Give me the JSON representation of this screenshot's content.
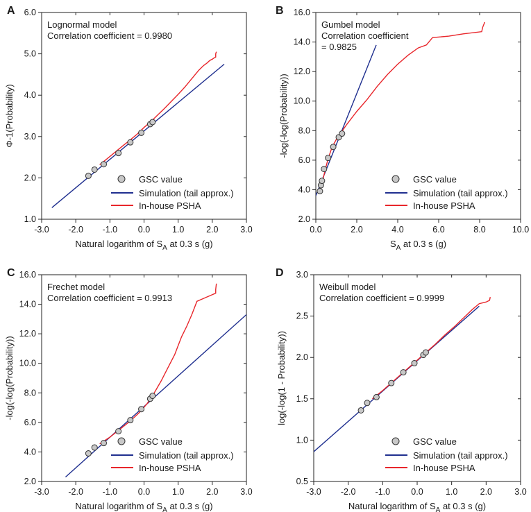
{
  "colors": {
    "simulation": "#1f2f8f",
    "inhouse": "#e8262b",
    "marker_fill": "#c8c8c8",
    "marker_stroke": "#333333",
    "axis": "#222222"
  },
  "chart_data": [
    {
      "panel": "A",
      "type": "line",
      "title": "Lognormal model",
      "correlation": "Correlation coefficient = 0.9980",
      "xlabel": "Natural logarithm of S",
      "xlabel_sub": "A",
      "xlabel_suffix": " at 0.3 s (g)",
      "ylabel": "Φ-1(Probability)",
      "xlim": [
        -3.0,
        3.0
      ],
      "ylim": [
        1.0,
        6.0
      ],
      "xticks": [
        -3.0,
        -2.0,
        -1.0,
        0.0,
        1.0,
        2.0,
        3.0
      ],
      "yticks": [
        1.0,
        2.0,
        3.0,
        4.0,
        5.0,
        6.0
      ],
      "xtick_labels": [
        "-3.0",
        "-2.0",
        "-1.0",
        "0.0",
        "1.0",
        "2.0",
        "3.0"
      ],
      "ytick_labels": [
        "1.0",
        "2.0",
        "3.0",
        "4.0",
        "5.0",
        "6.0"
      ],
      "legend": {
        "position": "lower-right",
        "gsc": "GSC value",
        "simulation": "Simulation (tail approx.)",
        "inhouse": "In-house PSHA"
      },
      "series": [
        {
          "name": "Simulation (tail approx.)",
          "kind": "line",
          "x": [
            -2.7,
            2.35
          ],
          "y": [
            1.28,
            4.75
          ]
        },
        {
          "name": "In-house PSHA",
          "kind": "line",
          "x": [
            -1.3,
            -1.1,
            -0.85,
            -0.6,
            -0.4,
            -0.2,
            0.0,
            0.2,
            0.4,
            0.6,
            0.8,
            1.0,
            1.2,
            1.35,
            1.5,
            1.6,
            1.7,
            1.75,
            1.85,
            1.9,
            1.95,
            2.0,
            2.05,
            2.1,
            2.1,
            2.12
          ],
          "y": [
            2.32,
            2.45,
            2.62,
            2.79,
            2.92,
            3.06,
            3.22,
            3.36,
            3.52,
            3.68,
            3.85,
            4.02,
            4.2,
            4.35,
            4.5,
            4.6,
            4.68,
            4.72,
            4.78,
            4.82,
            4.85,
            4.87,
            4.9,
            4.92,
            5.0,
            5.05
          ]
        },
        {
          "name": "GSC value",
          "kind": "scatter",
          "x": [
            -1.63,
            -1.45,
            -1.18,
            -0.75,
            -0.4,
            -0.08,
            0.18,
            0.25
          ],
          "y": [
            2.05,
            2.2,
            2.33,
            2.6,
            2.86,
            3.09,
            3.3,
            3.35
          ]
        }
      ]
    },
    {
      "panel": "B",
      "type": "line",
      "title": "Gumbel model",
      "correlation": "Correlation coefficient",
      "correlation2": "= 0.9825",
      "xlabel": "S",
      "xlabel_sub": "A",
      "xlabel_suffix": " at 0.3 s (g)",
      "ylabel": "-log(-log(Probability))",
      "xlim": [
        0.0,
        10.0
      ],
      "ylim": [
        2.0,
        16.0
      ],
      "xticks": [
        0.0,
        2.0,
        4.0,
        6.0,
        8.0,
        10.0
      ],
      "yticks": [
        2.0,
        4.0,
        6.0,
        8.0,
        10.0,
        12.0,
        14.0,
        16.0
      ],
      "xtick_labels": [
        "0.0",
        "2.0",
        "4.0",
        "6.0",
        "8.0",
        "10.0"
      ],
      "ytick_labels": [
        "2.0",
        "4.0",
        "6.0",
        "8.0",
        "10.0",
        "12.0",
        "14.0",
        "16.0"
      ],
      "legend": {
        "position": "lower-right",
        "gsc": "GSC value",
        "simulation": "Simulation (tail approx.)",
        "inhouse": "In-house PSHA"
      },
      "series": [
        {
          "name": "Simulation (tail approx.)",
          "kind": "line",
          "x": [
            0.0,
            2.95
          ],
          "y": [
            3.6,
            13.8
          ]
        },
        {
          "name": "In-house PSHA",
          "kind": "line",
          "x": [
            0.2,
            0.3,
            0.45,
            0.6,
            0.8,
            1.0,
            1.2,
            1.5,
            2.0,
            2.5,
            3.0,
            3.5,
            4.0,
            4.5,
            5.0,
            5.4,
            5.7,
            6.5,
            7.2,
            8.1,
            8.15,
            8.25
          ],
          "y": [
            3.9,
            4.4,
            5.3,
            6.1,
            6.9,
            7.4,
            7.8,
            8.4,
            9.3,
            10.1,
            11.0,
            11.8,
            12.5,
            13.1,
            13.6,
            13.8,
            14.3,
            14.4,
            14.55,
            14.7,
            15.0,
            15.35
          ]
        },
        {
          "name": "GSC value",
          "kind": "scatter",
          "x": [
            0.2,
            0.25,
            0.3,
            0.4,
            0.6,
            0.85,
            1.12,
            1.28
          ],
          "y": [
            3.9,
            4.3,
            4.6,
            5.4,
            6.15,
            6.9,
            7.55,
            7.8
          ]
        }
      ]
    },
    {
      "panel": "C",
      "type": "line",
      "title": "Frechet model",
      "correlation": "Correlation coefficient = 0.9913",
      "xlabel": "Natural logarithm of S",
      "xlabel_sub": "A",
      "xlabel_suffix": " at 0.3 s (g)",
      "ylabel": "-log(-log(Probability))",
      "xlim": [
        -3.0,
        3.0
      ],
      "ylim": [
        2.0,
        16.0
      ],
      "xticks": [
        -3.0,
        -2.0,
        -1.0,
        0.0,
        1.0,
        2.0,
        3.0
      ],
      "yticks": [
        2.0,
        4.0,
        6.0,
        8.0,
        10.0,
        12.0,
        14.0,
        16.0
      ],
      "xtick_labels": [
        "-3.0",
        "-2.0",
        "-1.0",
        "0.0",
        "1.0",
        "2.0",
        "3.0"
      ],
      "ytick_labels": [
        "2.0",
        "4.0",
        "6.0",
        "8.0",
        "10.0",
        "12.0",
        "14.0",
        "16.0"
      ],
      "legend": {
        "position": "lower-right",
        "gsc": "GSC value",
        "simulation": "Simulation (tail approx.)",
        "inhouse": "In-house PSHA"
      },
      "series": [
        {
          "name": "Simulation (tail approx.)",
          "kind": "line",
          "x": [
            -2.3,
            3.0
          ],
          "y": [
            2.3,
            13.3
          ]
        },
        {
          "name": "In-house PSHA",
          "kind": "line",
          "x": [
            -1.3,
            -1.0,
            -0.7,
            -0.4,
            -0.1,
            0.1,
            0.3,
            0.5,
            0.7,
            0.9,
            1.0,
            1.1,
            1.25,
            1.4,
            1.55,
            1.7,
            1.8,
            1.9,
            2.0,
            2.05,
            2.1,
            2.1,
            2.12
          ],
          "y": [
            4.55,
            5.0,
            5.55,
            6.1,
            6.75,
            7.3,
            8.0,
            8.8,
            9.7,
            10.6,
            11.2,
            11.8,
            12.5,
            13.3,
            14.2,
            14.35,
            14.45,
            14.55,
            14.65,
            14.7,
            14.75,
            15.0,
            15.4
          ]
        },
        {
          "name": "GSC value",
          "kind": "scatter",
          "x": [
            -1.63,
            -1.45,
            -1.18,
            -0.75,
            -0.4,
            -0.08,
            0.18,
            0.25
          ],
          "y": [
            3.9,
            4.3,
            4.6,
            5.4,
            6.15,
            6.9,
            7.6,
            7.8
          ]
        }
      ]
    },
    {
      "panel": "D",
      "type": "line",
      "title": "Weibull model",
      "correlation": "Correlation coefficient = 0.9999",
      "xlabel": "Natural logarithm of S",
      "xlabel_sub": "A",
      "xlabel_suffix": " at 0.3 s (g)",
      "ylabel": "log(-log(1 - Probability))",
      "xlim": [
        -3.0,
        3.0
      ],
      "ylim": [
        0.5,
        3.0
      ],
      "xticks": [
        -3.0,
        -2.0,
        -1.0,
        0.0,
        1.0,
        2.0,
        3.0
      ],
      "yticks": [
        0.5,
        1.0,
        1.5,
        2.0,
        2.5,
        3.0
      ],
      "xtick_labels": [
        "-3.0",
        "-2.0",
        "-1.0",
        "0.0",
        "1.0",
        "2.0",
        "3.0"
      ],
      "ytick_labels": [
        "0.5",
        "1.0",
        "1.5",
        "2.0",
        "2.5",
        "3.0"
      ],
      "legend": {
        "position": "lower-right",
        "gsc": "GSC value",
        "simulation": "Simulation (tail approx.)",
        "inhouse": "In-house PSHA"
      },
      "series": [
        {
          "name": "Simulation (tail approx.)",
          "kind": "line",
          "x": [
            -3.0,
            1.8
          ],
          "y": [
            0.86,
            2.62
          ]
        },
        {
          "name": "In-house PSHA",
          "kind": "line",
          "x": [
            -1.3,
            -1.0,
            -0.7,
            -0.4,
            -0.1,
            0.2,
            0.5,
            0.8,
            1.1,
            1.4,
            1.6,
            1.8,
            2.0,
            2.05,
            2.1,
            2.12
          ],
          "y": [
            1.5,
            1.6,
            1.71,
            1.82,
            1.93,
            2.04,
            2.15,
            2.27,
            2.38,
            2.5,
            2.58,
            2.65,
            2.67,
            2.68,
            2.69,
            2.73
          ]
        },
        {
          "name": "GSC value",
          "kind": "scatter",
          "x": [
            -1.63,
            -1.45,
            -1.18,
            -0.75,
            -0.4,
            -0.08,
            0.18,
            0.25
          ],
          "y": [
            1.36,
            1.45,
            1.52,
            1.69,
            1.82,
            1.93,
            2.03,
            2.06
          ]
        }
      ]
    }
  ]
}
